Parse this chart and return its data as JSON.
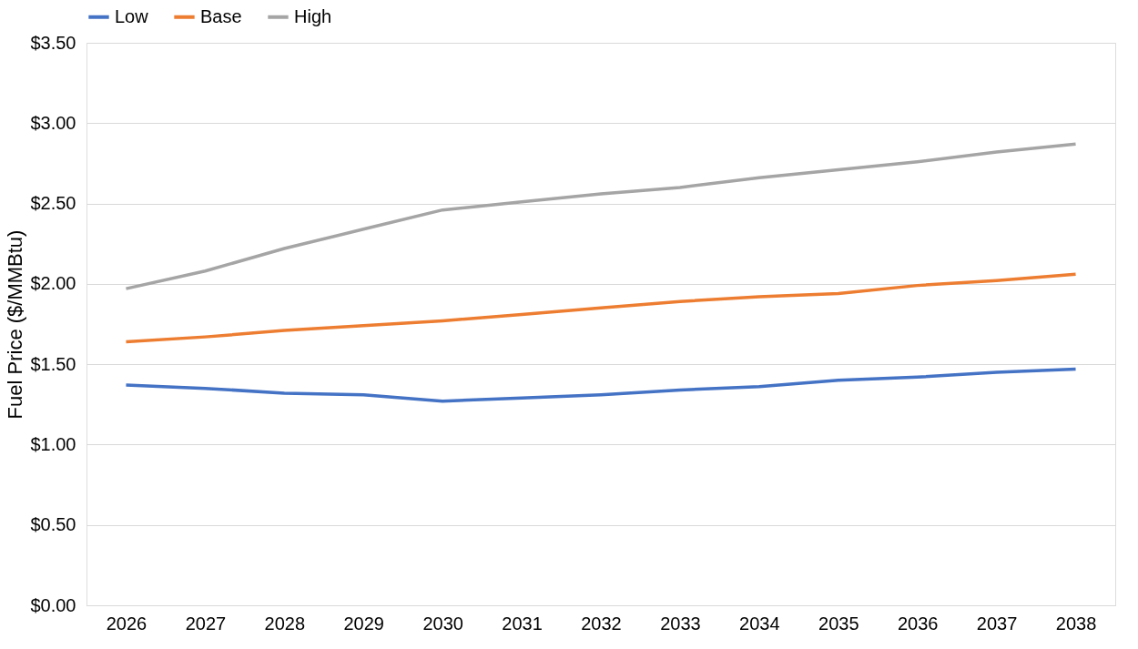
{
  "chart_data": {
    "type": "line",
    "ylabel": "Fuel Price ($/MMBtu)",
    "categories": [
      "2026",
      "2027",
      "2028",
      "2029",
      "2030",
      "2031",
      "2032",
      "2033",
      "2034",
      "2035",
      "2036",
      "2037",
      "2038"
    ],
    "series": [
      {
        "name": "Low",
        "color": "#4472c4",
        "values": [
          1.37,
          1.35,
          1.32,
          1.31,
          1.27,
          1.29,
          1.31,
          1.34,
          1.36,
          1.4,
          1.42,
          1.45,
          1.47
        ]
      },
      {
        "name": "Base",
        "color": "#ed7d31",
        "values": [
          1.64,
          1.67,
          1.71,
          1.74,
          1.77,
          1.81,
          1.85,
          1.89,
          1.92,
          1.94,
          1.99,
          2.02,
          2.06
        ]
      },
      {
        "name": "High",
        "color": "#a5a5a5",
        "values": [
          1.97,
          2.08,
          2.22,
          2.34,
          2.46,
          2.51,
          2.56,
          2.6,
          2.66,
          2.71,
          2.76,
          2.82,
          2.87
        ]
      }
    ],
    "ylim": [
      0,
      3.5
    ],
    "yticks": [
      {
        "value": 0,
        "label": "$0.00"
      },
      {
        "value": 0.5,
        "label": "$0.50"
      },
      {
        "value": 1,
        "label": "$1.00"
      },
      {
        "value": 1.5,
        "label": "$1.50"
      },
      {
        "value": 2,
        "label": "$2.00"
      },
      {
        "value": 2.5,
        "label": "$2.50"
      },
      {
        "value": 3,
        "label": "$3.00"
      },
      {
        "value": 3.5,
        "label": "$3.50"
      }
    ],
    "grid": "y",
    "legend": "top",
    "marker": "none",
    "line_style": "solid"
  }
}
